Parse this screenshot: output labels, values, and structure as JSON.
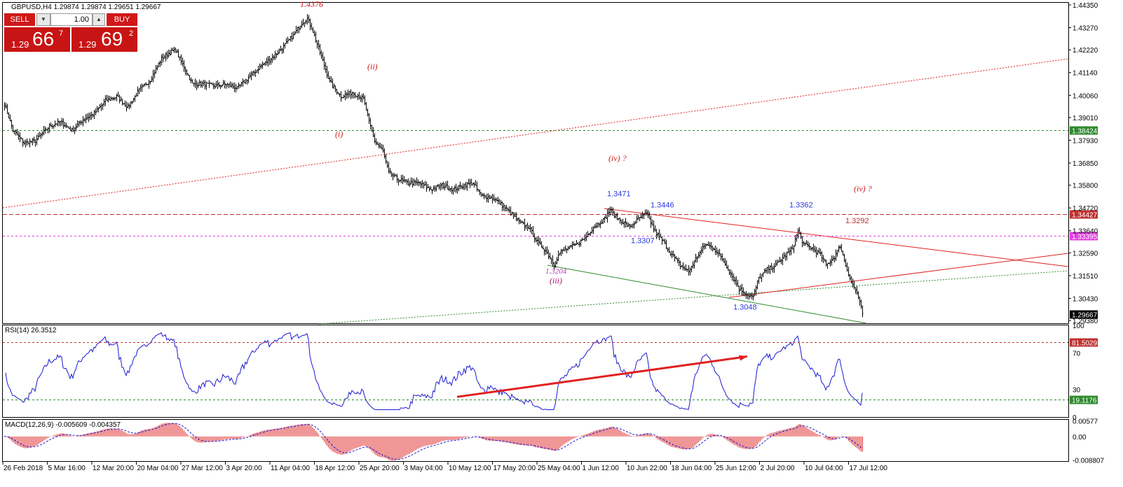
{
  "chart_title": "GBPUSD,H4  1.29874 1.29874 1.29651 1.29667",
  "trade_panel": {
    "sell_label": "SELL",
    "buy_label": "BUY",
    "lot_value": "1.00",
    "sell_prefix": "1.29",
    "sell_big": "66",
    "sell_sup": "7",
    "buy_prefix": "1.29",
    "buy_big": "69",
    "buy_sup": "2"
  },
  "chart_data": [
    {
      "type": "bar",
      "symbol": "GBPUSD",
      "timeframe": "H4",
      "ohlc_header": {
        "open": 1.29874,
        "high": 1.29874,
        "low": 1.29651,
        "close": 1.29667
      },
      "ylim": [
        1.2925,
        1.4445
      ],
      "y_ticks": [
        1.4435,
        1.4327,
        1.4222,
        1.4114,
        1.4006,
        1.3901,
        1.3793,
        1.3685,
        1.358,
        1.3472,
        1.3364,
        1.3259,
        1.3151,
        1.3043,
        1.2938
      ],
      "y_tick_labels": [
        "1.44350",
        "1.43270",
        "1.42220",
        "1.41140",
        "1.40060",
        "1.39010",
        "1.37930",
        "1.36850",
        "1.35800",
        "1.34720",
        "1.33640",
        "1.32590",
        "1.31510",
        "1.30430",
        "1.29380"
      ],
      "x_tick_labels": [
        "26 Feb 2018",
        "5 Mar 16:00",
        "12 Mar 20:00",
        "20 Mar 04:00",
        "27 Mar 12:00",
        "3 Apr 20:00",
        "11 Apr 04:00",
        "18 Apr 12:00",
        "25 Apr 20:00",
        "3 May 04:00",
        "10 May 12:00",
        "17 May 20:00",
        "25 May 04:00",
        "1 Jun 12:00",
        "10 Jun 22:00",
        "18 Jun 04:00",
        "25 Jun 12:00",
        "2 Jul 20:00",
        "10 Jul 04:00",
        "17 Jul 12:00"
      ],
      "price_anchors": [
        [
          0,
          1.3965
        ],
        [
          6,
          1.384
        ],
        [
          14,
          1.378
        ],
        [
          22,
          1.379
        ],
        [
          32,
          1.386
        ],
        [
          40,
          1.388
        ],
        [
          48,
          1.384
        ],
        [
          56,
          1.389
        ],
        [
          64,
          1.392
        ],
        [
          72,
          1.398
        ],
        [
          80,
          1.4
        ],
        [
          88,
          1.395
        ],
        [
          96,
          1.403
        ],
        [
          104,
          1.408
        ],
        [
          112,
          1.418
        ],
        [
          118,
          1.421
        ],
        [
          122,
          1.422
        ],
        [
          128,
          1.414
        ],
        [
          134,
          1.406
        ],
        [
          142,
          1.406
        ],
        [
          150,
          1.405
        ],
        [
          158,
          1.406
        ],
        [
          166,
          1.404
        ],
        [
          174,
          1.409
        ],
        [
          182,
          1.414
        ],
        [
          190,
          1.418
        ],
        [
          198,
          1.423
        ],
        [
          206,
          1.429
        ],
        [
          212,
          1.435
        ],
        [
          216,
          1.437
        ],
        [
          220,
          1.431
        ],
        [
          226,
          1.419
        ],
        [
          232,
          1.407
        ],
        [
          240,
          1.4
        ],
        [
          248,
          1.402
        ],
        [
          256,
          1.399
        ],
        [
          260,
          1.388
        ],
        [
          264,
          1.379
        ],
        [
          270,
          1.374
        ],
        [
          274,
          1.364
        ],
        [
          280,
          1.361
        ],
        [
          288,
          1.359
        ],
        [
          296,
          1.359
        ],
        [
          304,
          1.356
        ],
        [
          312,
          1.358
        ],
        [
          320,
          1.356
        ],
        [
          328,
          1.358
        ],
        [
          334,
          1.359
        ],
        [
          340,
          1.353
        ],
        [
          348,
          1.352
        ],
        [
          356,
          1.348
        ],
        [
          362,
          1.344
        ],
        [
          368,
          1.34
        ],
        [
          374,
          1.338
        ],
        [
          380,
          1.331
        ],
        [
          386,
          1.327
        ],
        [
          392,
          1.3205
        ],
        [
          396,
          1.326
        ],
        [
          402,
          1.328
        ],
        [
          408,
          1.33
        ],
        [
          414,
          1.333
        ],
        [
          420,
          1.338
        ],
        [
          428,
          1.342
        ],
        [
          432,
          1.3465
        ],
        [
          436,
          1.343
        ],
        [
          440,
          1.341
        ],
        [
          446,
          1.338
        ],
        [
          452,
          1.342
        ],
        [
          458,
          1.3445
        ],
        [
          464,
          1.336
        ],
        [
          470,
          1.331
        ],
        [
          476,
          1.325
        ],
        [
          482,
          1.32
        ],
        [
          488,
          1.317
        ],
        [
          494,
          1.324
        ],
        [
          500,
          1.33
        ],
        [
          506,
          1.328
        ],
        [
          512,
          1.323
        ],
        [
          518,
          1.316
        ],
        [
          524,
          1.309
        ],
        [
          530,
          1.306
        ],
        [
          534,
          1.305
        ],
        [
          538,
          1.314
        ],
        [
          544,
          1.318
        ],
        [
          550,
          1.32
        ],
        [
          556,
          1.324
        ],
        [
          562,
          1.328
        ],
        [
          566,
          1.3362
        ],
        [
          570,
          1.33
        ],
        [
          576,
          1.328
        ],
        [
          582,
          1.325
        ],
        [
          586,
          1.32
        ],
        [
          592,
          1.324
        ],
        [
          596,
          1.3292
        ],
        [
          600,
          1.32
        ],
        [
          604,
          1.312
        ],
        [
          608,
          1.307
        ],
        [
          612,
          1.2972
        ]
      ],
      "horizontal_levels": [
        {
          "price": 1.38424,
          "label": "1.38424",
          "color": "#2e8b2e",
          "style": "dashed"
        },
        {
          "price": 1.34427,
          "label": "1.34427",
          "color": "#c03030",
          "style": "dashed"
        },
        {
          "price": 1.33395,
          "label": "1.33395",
          "color": "#e040e0",
          "style": "dashed"
        },
        {
          "price": 1.29667,
          "label": "1.29667",
          "color": "#000000",
          "style": "current"
        }
      ],
      "annotations": [
        {
          "text": "1.4376",
          "price": 1.4425,
          "bar": 211
        },
        {
          "text": "(ii)",
          "price": 1.413,
          "bar": 259
        },
        {
          "text": "(i)",
          "price": 1.381,
          "bar": 236
        },
        {
          "text": "(iv) ?",
          "price": 1.3695,
          "bar": 431
        },
        {
          "text": "1.3471",
          "price": 1.3527,
          "bar": 430
        },
        {
          "text": "1.3446",
          "price": 1.3475,
          "bar": 461
        },
        {
          "text": "1.3362",
          "price": 1.3475,
          "bar": 560
        },
        {
          "text": "(iv) ?",
          "price": 1.355,
          "bar": 606
        },
        {
          "text": "1.3292",
          "price": 1.34,
          "bar": 600
        },
        {
          "text": "1.3307",
          "price": 1.3305,
          "bar": 447
        },
        {
          "text": "1.3204",
          "price": 1.316,
          "bar": 386
        },
        {
          "text": "(iii)",
          "price": 1.3115,
          "bar": 389
        },
        {
          "text": "1.3048",
          "price": 1.299,
          "bar": 520
        }
      ]
    },
    {
      "type": "line",
      "indicator": "RSI(14)",
      "header": "RSI(14) 26.3512",
      "value": 26.3512,
      "ylim": [
        0,
        100
      ],
      "y_tick_labels": [
        "100",
        "70",
        "30",
        "0"
      ],
      "levels": [
        {
          "value": 81.5029,
          "label": "81.5029",
          "color": "#c03030"
        },
        {
          "value": 19.1176,
          "label": "19.1176",
          "color": "#2e8b2e"
        }
      ],
      "trendline": {
        "from": [
          323,
          22
        ],
        "to": [
          530,
          66
        ]
      }
    },
    {
      "type": "bar",
      "indicator": "MACD(12,26,9)",
      "header": "MACD(12,26,9) -0.005609 -0.004357",
      "main": -0.005609,
      "signal": -0.004357,
      "ylim": [
        -0.0092,
        0.0062
      ],
      "y_tick_labels": [
        "0.00577",
        "0.00",
        "-0.008807"
      ]
    }
  ]
}
